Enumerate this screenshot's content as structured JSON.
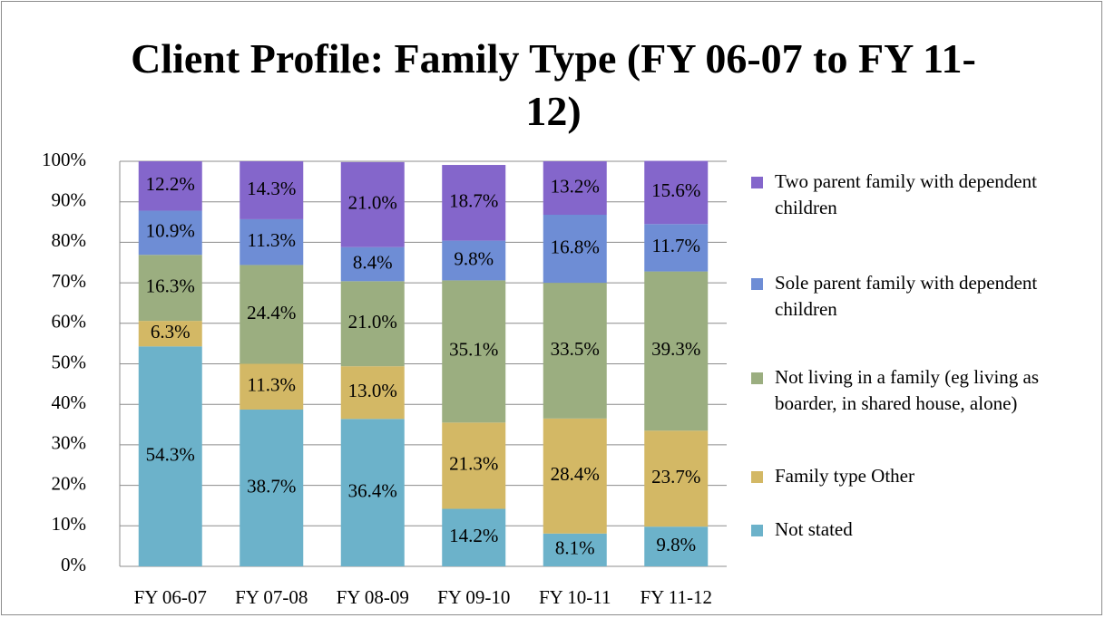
{
  "chart_data": {
    "type": "stacked_bar",
    "title": "Client Profile: Family Type (FY 06-07 to FY 11-12)",
    "categories": [
      "FY 06-07",
      "FY 07-08",
      "FY 08-09",
      "FY 09-10",
      "FY 10-11",
      "FY 11-12"
    ],
    "series": [
      {
        "name": "Not stated",
        "color": "#6cb2ca",
        "values": [
          54.3,
          38.7,
          36.4,
          14.2,
          8.1,
          9.8
        ],
        "value_labels": [
          "54.3%",
          "38.7%",
          "36.4%",
          "14.2%",
          "8.1%",
          "9.8%"
        ]
      },
      {
        "name": "Family type Other",
        "color": "#d3b865",
        "values": [
          6.3,
          11.3,
          13.0,
          21.3,
          28.4,
          23.7
        ],
        "value_labels": [
          "6.3%",
          "11.3%",
          "13.0%",
          "21.3%",
          "28.4%",
          "23.7%"
        ]
      },
      {
        "name": "Not living in a family (eg living as boarder, in shared house, alone)",
        "color": "#9bae80",
        "values": [
          16.3,
          24.4,
          21.0,
          35.1,
          33.5,
          39.3
        ],
        "value_labels": [
          "16.3%",
          "24.4%",
          "21.0%",
          "35.1%",
          "33.5%",
          "39.3%"
        ]
      },
      {
        "name": "Sole parent family with dependent children",
        "color": "#6e8dd5",
        "values": [
          10.9,
          11.3,
          8.4,
          9.8,
          16.8,
          11.7
        ],
        "value_labels": [
          "10.9%",
          "11.3%",
          "8.4%",
          "9.8%",
          "16.8%",
          "11.7%"
        ]
      },
      {
        "name": "Two parent family with dependent children",
        "color": "#8466cb",
        "values": [
          12.2,
          14.3,
          21.0,
          18.7,
          13.2,
          15.6
        ],
        "value_labels": [
          "12.2%",
          "14.3%",
          "21.0%",
          "18.7%",
          "13.2%",
          "15.6%"
        ]
      }
    ],
    "ylim": [
      0,
      100
    ],
    "yticks": [
      {
        "value": 0,
        "label": "0%"
      },
      {
        "value": 10,
        "label": "10%"
      },
      {
        "value": 20,
        "label": "20%"
      },
      {
        "value": 30,
        "label": "30%"
      },
      {
        "value": 40,
        "label": "40%"
      },
      {
        "value": 50,
        "label": "50%"
      },
      {
        "value": 60,
        "label": "60%"
      },
      {
        "value": 70,
        "label": "70%"
      },
      {
        "value": 80,
        "label": "80%"
      },
      {
        "value": 90,
        "label": "90%"
      },
      {
        "value": 100,
        "label": "100%"
      }
    ],
    "grid": true,
    "legend": "right"
  }
}
